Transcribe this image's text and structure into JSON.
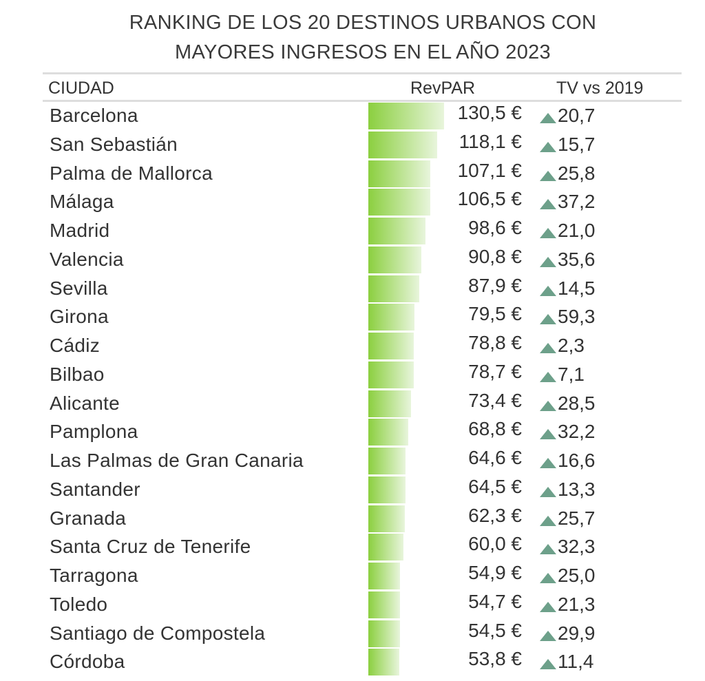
{
  "title_line1": "RANKING DE LOS 20 DESTINOS URBANOS CON",
  "title_line2": "MAYORES INGRESOS EN EL AÑO 2023",
  "headers": {
    "city": "CIUDAD",
    "revpar": "RevPAR",
    "tv": "TV vs 2019"
  },
  "colors": {
    "bar": "#8bcf3f",
    "triangle": "#6da08a"
  },
  "chart_data": {
    "type": "bar",
    "title": "RANKING DE LOS 20 DESTINOS URBANOS CON MAYORES INGRESOS EN EL AÑO 2023",
    "categories": [
      "Barcelona",
      "San Sebastián",
      "Palma de Mallorca",
      "Málaga",
      "Madrid",
      "Valencia",
      "Sevilla",
      "Girona",
      "Cádiz",
      "Bilbao",
      "Alicante",
      "Pamplona",
      "Las Palmas de Gran Canaria",
      "Santander",
      "Granada",
      "Santa Cruz de Tenerife",
      "Tarragona",
      "Toledo",
      "Santiago de Compostela",
      "Córdoba"
    ],
    "revpar": [
      130.5,
      118.1,
      107.1,
      106.5,
      98.6,
      90.8,
      87.9,
      79.5,
      78.8,
      78.7,
      73.4,
      68.8,
      64.6,
      64.5,
      62.3,
      60.0,
      54.9,
      54.7,
      54.5,
      53.8
    ],
    "revpar_labels": [
      "130,5 €",
      "118,1 €",
      "107,1 €",
      "106,5 €",
      "98,6 €",
      "90,8 €",
      "87,9 €",
      "79,5 €",
      "78,8 €",
      "78,7 €",
      "73,4 €",
      "68,8 €",
      "64,6 €",
      "64,5 €",
      "62,3 €",
      "60,0 €",
      "54,9 €",
      "54,7 €",
      "54,5 €",
      "53,8 €"
    ],
    "tv_vs_2019": [
      "20,7",
      "15,7",
      "25,8",
      "37,2",
      "21,0",
      "35,6",
      "14,5",
      "59,3",
      "2,3",
      "7,1",
      "28,5",
      "32,2",
      "16,6",
      "13,3",
      "25,7",
      "32,3",
      "25,0",
      "21,3",
      "29,9",
      "11,4"
    ],
    "xlim": [
      0,
      130.5
    ]
  }
}
